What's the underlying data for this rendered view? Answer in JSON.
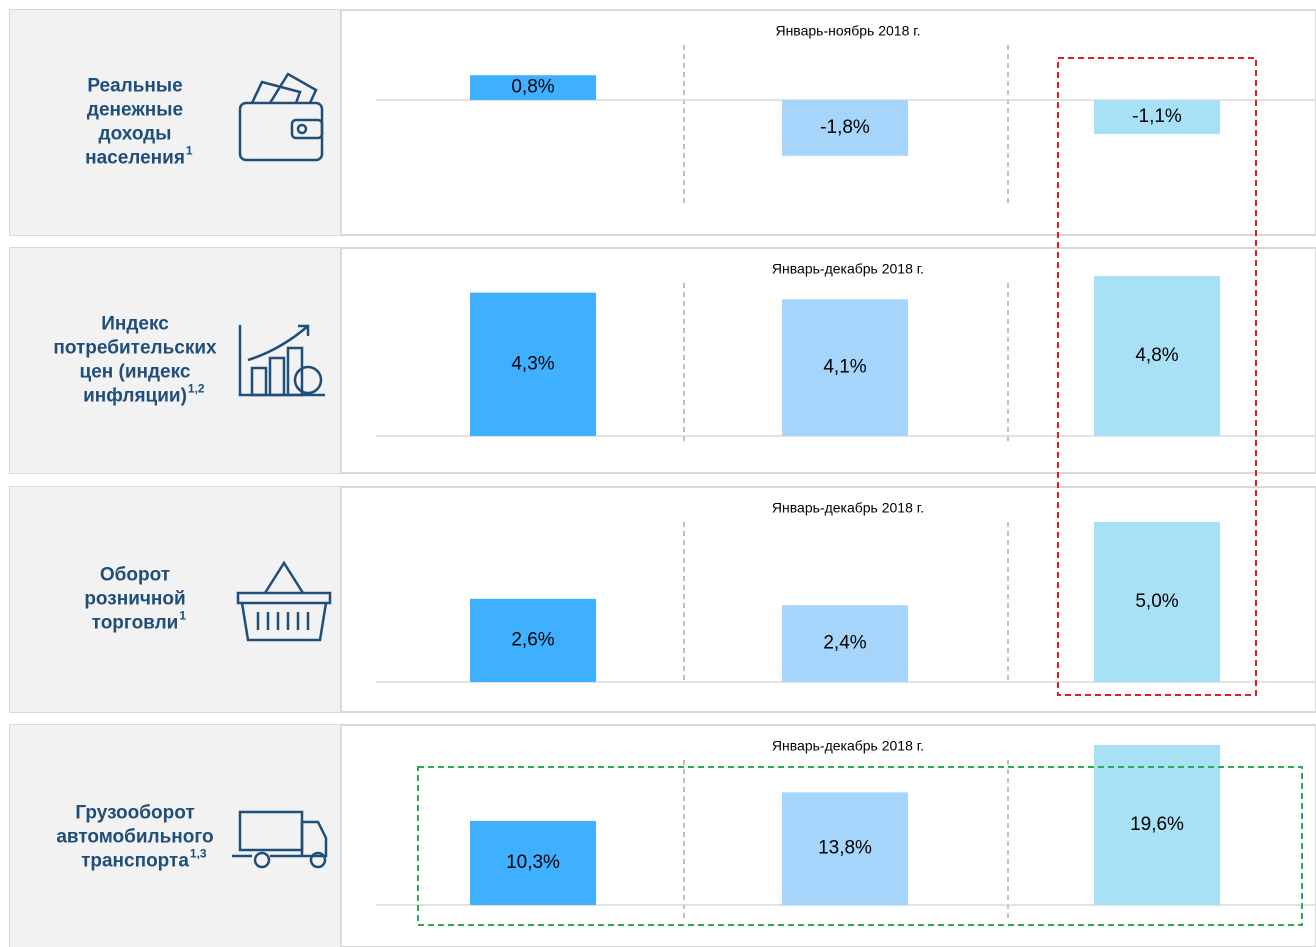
{
  "rows": [
    {
      "label_lines": [
        "Реальные",
        "денежные",
        "доходы",
        "населения"
      ],
      "sup": "1",
      "period": "Январь-ноябрь 2018 г.",
      "chart_data": {
        "type": "bar",
        "values": [
          0.8,
          -1.8,
          -1.1
        ],
        "value_labels": [
          "0,8%",
          "-1,8%",
          "-1,1%"
        ]
      }
    },
    {
      "label_lines": [
        "Индекс",
        "потребительских",
        "цен (индекс",
        "инфляции)"
      ],
      "sup": "1,2",
      "period": "Январь-декабрь 2018 г.",
      "chart_data": {
        "type": "bar",
        "values": [
          4.3,
          4.1,
          4.8
        ],
        "value_labels": [
          "4,3%",
          "4,1%",
          "4,8%"
        ]
      }
    },
    {
      "label_lines": [
        "Оборот",
        "розничной",
        "торговли"
      ],
      "sup": "1",
      "period": "Январь-декабрь 2018 г.",
      "chart_data": {
        "type": "bar",
        "values": [
          2.6,
          2.4,
          5.0
        ],
        "value_labels": [
          "2,6%",
          "2,4%",
          "5,0%"
        ]
      }
    },
    {
      "label_lines": [
        "Грузооборот",
        "автомобильного",
        "транспорта"
      ],
      "sup": "1,3",
      "period": "Январь-декабрь 2018 г.",
      "chart_data": {
        "type": "bar",
        "values": [
          10.3,
          13.8,
          19.6
        ],
        "value_labels": [
          "10,3%",
          "13,8%",
          "19,6%"
        ]
      }
    }
  ],
  "colors": [
    "#3fb0ff",
    "#a6d5fb",
    "#a8e0f5"
  ]
}
